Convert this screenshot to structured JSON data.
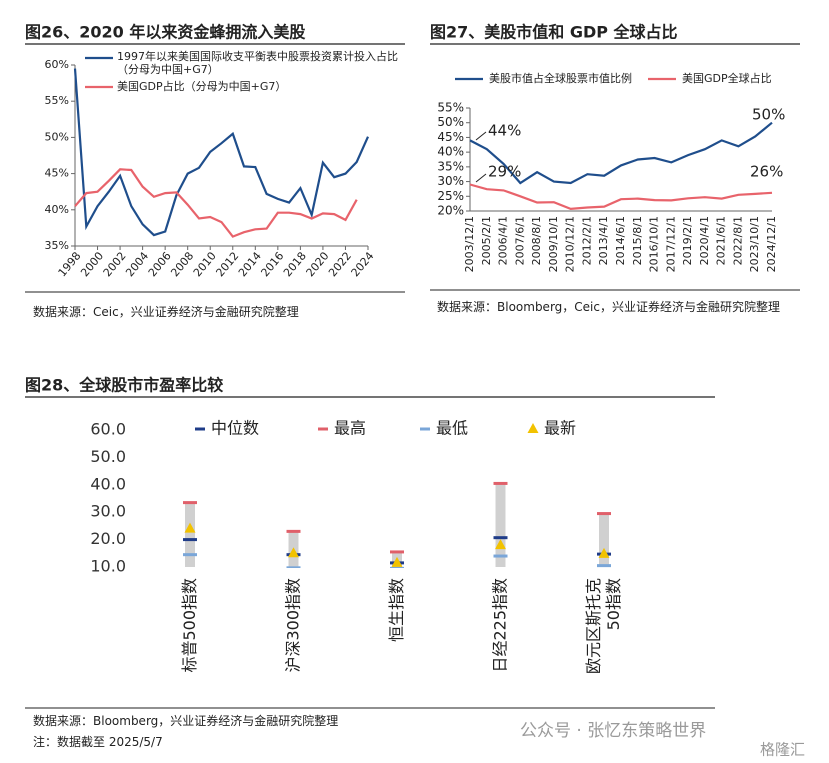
{
  "chart_data": [
    {
      "type": "line",
      "title": "图26、2020 年以来资金蜂拥流入美股",
      "x": [
        1998,
        1999,
        2000,
        2001,
        2002,
        2003,
        2004,
        2005,
        2006,
        2007,
        2008,
        2009,
        2010,
        2011,
        2012,
        2013,
        2014,
        2015,
        2016,
        2017,
        2018,
        2019,
        2020,
        2021,
        2022,
        2023,
        2024
      ],
      "xlim": [
        1998,
        2024
      ],
      "xticks": [
        1998,
        2000,
        2002,
        2004,
        2006,
        2008,
        2010,
        2012,
        2014,
        2016,
        2018,
        2020,
        2022,
        2024
      ],
      "ylim": [
        35,
        60
      ],
      "yticks": [
        {
          "value": 35,
          "label": "35%"
        },
        {
          "value": 40,
          "label": "40%"
        },
        {
          "value": 45,
          "label": "45%"
        },
        {
          "value": 50,
          "label": "50%"
        },
        {
          "value": 55,
          "label": "55%"
        },
        {
          "value": 60,
          "label": "60%"
        }
      ],
      "series": [
        {
          "name": "1997年以来美国国际收支平衡表中股票投资累计投入占比（分母为中国+G7）",
          "color": "#1f4e8c",
          "values": [
            59.5,
            37.7,
            40.5,
            42.5,
            44.7,
            40.5,
            38,
            36.5,
            37,
            42,
            45,
            45.8,
            48,
            49.2,
            50.5,
            46,
            45.9,
            42.2,
            41.5,
            41,
            43,
            39.3,
            46.5,
            44.5,
            45,
            46.6,
            50.1
          ]
        },
        {
          "name": "美国GDP占比（分母为中国+G7）",
          "color": "#e8636b",
          "values": [
            40.5,
            42.3,
            42.5,
            44,
            45.6,
            45.5,
            43.2,
            41.8,
            42.3,
            42.4,
            40.7,
            38.8,
            39,
            38.3,
            36.3,
            36.9,
            37.3,
            37.4,
            39.6,
            39.6,
            39.4,
            38.8,
            39.5,
            39.4,
            38.6,
            41.4,
            null
          ]
        }
      ],
      "source": "数据来源：Ceic，兴业证券经济与金融研究院整理"
    },
    {
      "type": "line",
      "title": "图27、美股市值和 GDP 全球占比",
      "categories": [
        "2003/12/1",
        "2005/2/1",
        "2006/4/1",
        "2007/6/1",
        "2008/8/1",
        "2009/10/1",
        "2010/12/1",
        "2012/2/1",
        "2013/4/1",
        "2014/6/1",
        "2015/8/1",
        "2016/10/1",
        "2017/12/1",
        "2019/2/1",
        "2020/4/1",
        "2021/6/1",
        "2022/8/1",
        "2023/10/1",
        "2024/12/1"
      ],
      "ylim": [
        20,
        55
      ],
      "yticks": [
        {
          "value": 20,
          "label": "20%"
        },
        {
          "value": 25,
          "label": "25%"
        },
        {
          "value": 30,
          "label": "30%"
        },
        {
          "value": 35,
          "label": "35%"
        },
        {
          "value": 40,
          "label": "40%"
        },
        {
          "value": 45,
          "label": "45%"
        },
        {
          "value": 50,
          "label": "50%"
        },
        {
          "value": 55,
          "label": "55%"
        }
      ],
      "series": [
        {
          "name": "美股市值占全球股票市值比例",
          "color": "#1f4e8c",
          "values": [
            44,
            41,
            36,
            29.5,
            33.2,
            30,
            29.5,
            32.5,
            32,
            35.5,
            37.5,
            38,
            36.5,
            39,
            41,
            44,
            42,
            45.3,
            50
          ]
        },
        {
          "name": "美国GDP全球占比",
          "color": "#e8636b",
          "values": [
            29,
            27.4,
            27,
            25,
            22.9,
            23,
            20.7,
            21.2,
            21.5,
            24,
            24.2,
            23.7,
            23.6,
            24.3,
            24.7,
            24.2,
            25.5,
            25.8,
            26.2
          ]
        }
      ],
      "annotations": [
        "44%",
        "29%",
        "50%",
        "26%"
      ],
      "source": "数据来源：Bloomberg，Ceic，兴业证券经济与金融研究院整理"
    },
    {
      "type": "range",
      "title": "图28、全球股市市盈率比较",
      "categories": [
        "标普500指数",
        "沪深300指数",
        "恒生指数",
        "日经225指数",
        "欧元区斯托克50指数"
      ],
      "ylim": [
        10,
        60
      ],
      "yticks": [
        {
          "value": 10,
          "label": "10.0"
        },
        {
          "value": 20,
          "label": "20.0"
        },
        {
          "value": 30,
          "label": "30.0"
        },
        {
          "value": 40,
          "label": "40.0"
        },
        {
          "value": 50,
          "label": "50.0"
        },
        {
          "value": 60,
          "label": "60.0"
        }
      ],
      "series": [
        {
          "name": "中位数",
          "color": "#1f3c88",
          "marker": "dash",
          "values": [
            20,
            14.5,
            11.5,
            20.7,
            14.7
          ]
        },
        {
          "name": "最高",
          "color": "#e0606a",
          "marker": "dash",
          "range_top": true,
          "values": [
            33.5,
            23,
            15.5,
            40.5,
            29.5
          ]
        },
        {
          "name": "最低",
          "color": "#7aa6d8",
          "marker": "dash",
          "values": [
            14.5,
            9.7,
            9.5,
            14,
            10.5
          ]
        },
        {
          "name": "最新",
          "color": "#f2c200",
          "marker": "triangle",
          "values": [
            24,
            15,
            11.5,
            18,
            14.8
          ]
        }
      ],
      "range_color": "#d0d0d0",
      "source": "数据来源：Bloomberg，兴业证券经济与金融研究院整理",
      "note": "注：数据截至 2025/5/7"
    }
  ],
  "watermark": "公众号 · 张忆东策略世界",
  "watermark2": "格隆汇"
}
